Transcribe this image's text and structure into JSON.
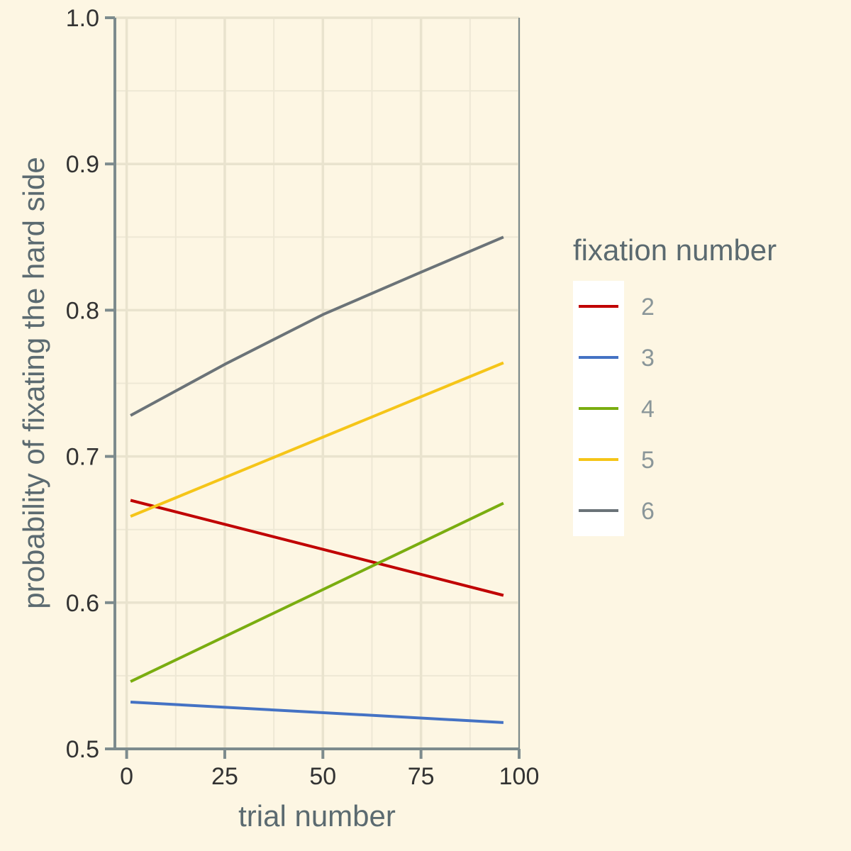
{
  "chart_data": {
    "type": "line",
    "xlabel": "trial number",
    "ylabel": "probability of fixating the hard side",
    "xlim": [
      -3,
      100
    ],
    "ylim": [
      0.5,
      1.0
    ],
    "x_ticks": [
      "0",
      "25",
      "50",
      "75",
      "100"
    ],
    "y_ticks": [
      "0.5",
      "0.6",
      "0.7",
      "0.8",
      "0.9",
      "1.0"
    ],
    "grid": true,
    "legend_title": "fixation number",
    "legend_position": "right",
    "series": [
      {
        "name": "2",
        "color": "#c00000",
        "x": [
          1,
          96
        ],
        "values": [
          0.67,
          0.605
        ]
      },
      {
        "name": "3",
        "color": "#4472c4",
        "x": [
          1,
          96
        ],
        "values": [
          0.532,
          0.518
        ]
      },
      {
        "name": "4",
        "color": "#7aad10",
        "x": [
          1,
          96
        ],
        "values": [
          0.546,
          0.668
        ]
      },
      {
        "name": "5",
        "color": "#f5c518",
        "x": [
          1,
          96
        ],
        "values": [
          0.659,
          0.764
        ]
      },
      {
        "name": "6",
        "color": "#6b7378",
        "x": [
          1,
          25,
          50,
          75,
          96
        ],
        "values": [
          0.728,
          0.763,
          0.797,
          0.826,
          0.85
        ]
      }
    ]
  }
}
